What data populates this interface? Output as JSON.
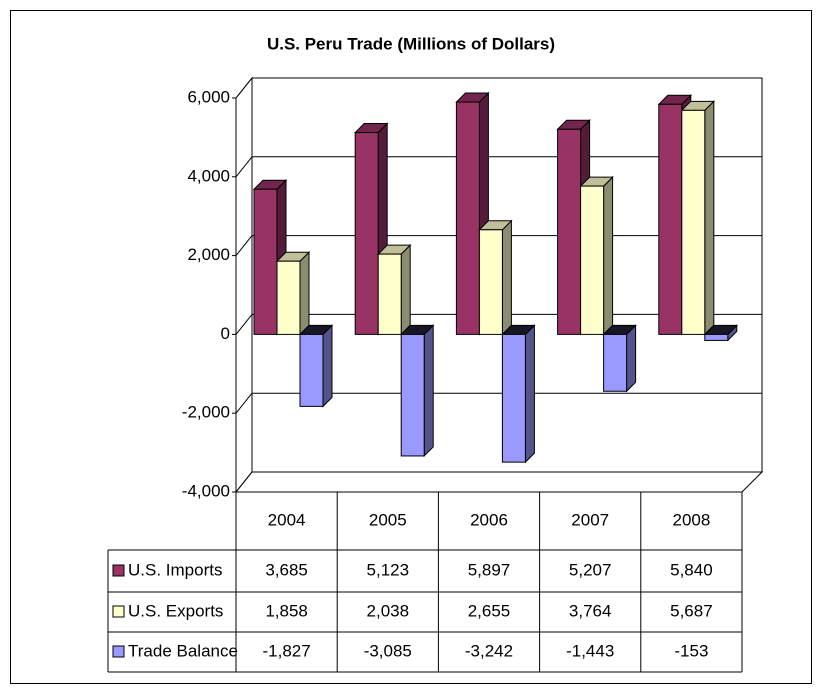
{
  "chart_data": {
    "type": "bar3d",
    "title": "U.S. Peru Trade (Millions of Dollars)",
    "categories": [
      "2004",
      "2005",
      "2006",
      "2007",
      "2008"
    ],
    "series": [
      {
        "name": "U.S. Imports",
        "color": "#993366",
        "values": [
          3685,
          5123,
          5897,
          5207,
          5840
        ],
        "value_labels": [
          "3,685",
          "5,123",
          "5,897",
          "5,207",
          "5,840"
        ]
      },
      {
        "name": "U.S. Exports",
        "color": "#ffffcc",
        "values": [
          1858,
          2038,
          2655,
          3764,
          5687
        ],
        "value_labels": [
          "1,858",
          "2,038",
          "2,655",
          "3,764",
          "5,687"
        ]
      },
      {
        "name": "Trade Balance",
        "color": "#9999ff",
        "values": [
          -1827,
          -3085,
          -3242,
          -1443,
          -153
        ],
        "value_labels": [
          "-1,827",
          "-3,085",
          "-3,242",
          "-1,443",
          "-153"
        ]
      }
    ],
    "ylim": [
      -4000,
      6000
    ],
    "yticks": [
      {
        "value": -4000,
        "label": "-4,000"
      },
      {
        "value": -2000,
        "label": "-2,000"
      },
      0,
      {
        "value": 2000,
        "label": "2,000"
      },
      {
        "value": 4000,
        "label": "4,000"
      },
      {
        "value": 6000,
        "label": "6,000"
      }
    ],
    "grid": true,
    "data_table": true
  }
}
